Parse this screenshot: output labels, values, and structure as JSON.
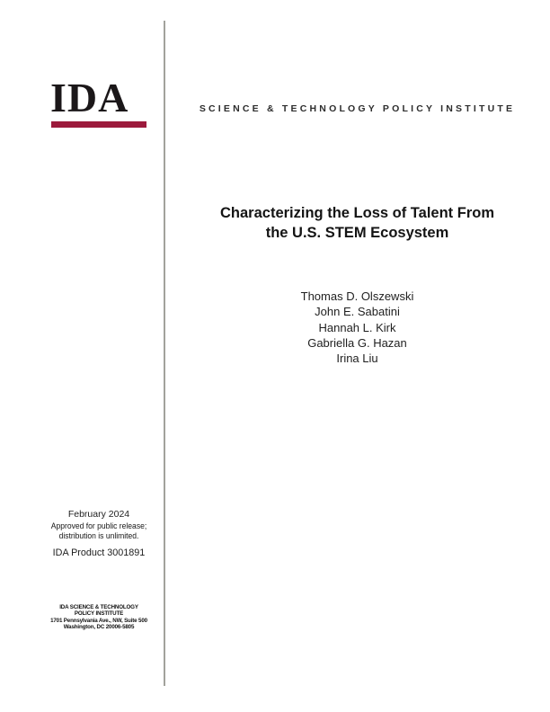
{
  "cover": {
    "logo_text": "IDA",
    "institute": "SCIENCE & TECHNOLOGY POLICY INSTITUTE",
    "title": {
      "line1": "Characterizing the Loss of Talent From",
      "line2": "the U.S. STEM Ecosystem"
    },
    "authors": [
      "Thomas D. Olszewski",
      "John E. Sabatini",
      "Hannah L. Kirk",
      "Gabriella G. Hazan",
      "Irina Liu"
    ],
    "release": {
      "date": "February 2024",
      "approval_line1": "Approved for public release;",
      "approval_line2": "distribution is unlimited.",
      "product_number": "IDA Product 3001891"
    },
    "footer_address": {
      "line1": "IDA SCIENCE & TECHNOLOGY",
      "line2": "POLICY INSTITUTE",
      "line3": "1701 Pennsylvania Ave., NW, Suite 500",
      "line4": "Washington, DC 20006-5805"
    },
    "colors": {
      "accent_crimson": "#9C1A3C",
      "divider_gray": "#A2A29C",
      "text_black": "#1D1D1F"
    }
  }
}
